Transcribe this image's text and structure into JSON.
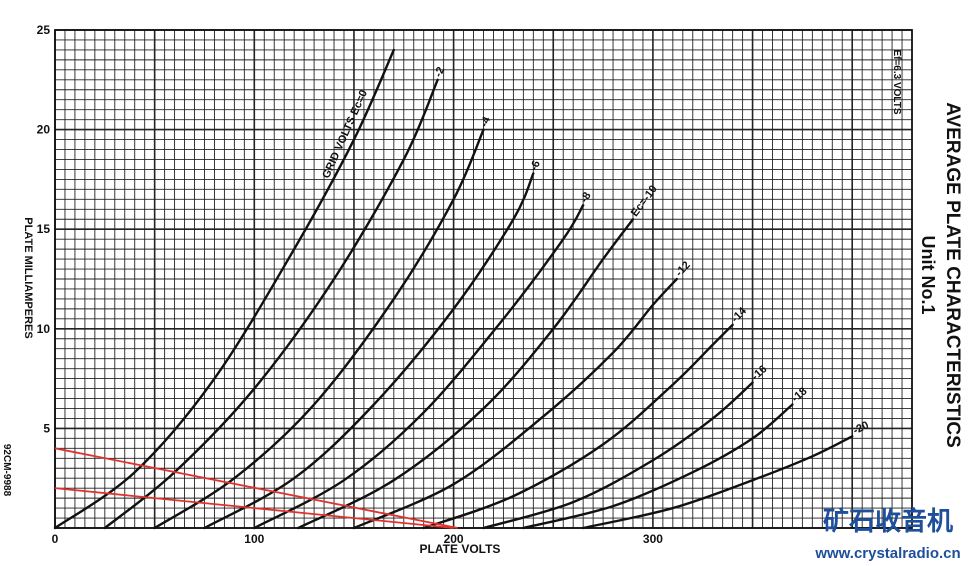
{
  "chart_data": {
    "type": "line",
    "title": "AVERAGE PLATE CHARACTERISTICS",
    "subtitle": "Unit No.1",
    "xlabel": "PLATE VOLTS",
    "ylabel": "PLATE MILLIAMPERES",
    "annotation": "Ef=6.3 VOLTS",
    "code": "92CM-9988",
    "xlim": [
      0,
      430
    ],
    "ylim": [
      0,
      25
    ],
    "x_ticks": [
      0,
      100,
      200,
      300
    ],
    "y_ticks": [
      5,
      10,
      15,
      20,
      25
    ],
    "grid": true,
    "series": [
      {
        "name": "GRID VOLTS Ec=0",
        "x": [
          0,
          40,
          80,
          120,
          150,
          170
        ],
        "y": [
          0,
          2.8,
          7.5,
          14,
          19.5,
          24
        ],
        "label_text": "GRID VOLTS Ec=0"
      },
      {
        "name": "-2",
        "x": [
          25,
          60,
          100,
          140,
          175,
          192
        ],
        "y": [
          0,
          2.8,
          7,
          12.5,
          18.5,
          22.5
        ],
        "label_text": "-2"
      },
      {
        "name": "-4",
        "x": [
          50,
          90,
          130,
          170,
          200,
          215
        ],
        "y": [
          0,
          2.5,
          6.2,
          11.5,
          16.5,
          20
        ],
        "label_text": "-4"
      },
      {
        "name": "-6",
        "x": [
          75,
          120,
          160,
          200,
          230,
          240
        ],
        "y": [
          0,
          2.5,
          6.2,
          11,
          15.5,
          17.8
        ],
        "label_text": "-6"
      },
      {
        "name": "-8",
        "x": [
          100,
          145,
          185,
          225,
          255,
          265
        ],
        "y": [
          0,
          2.4,
          5.8,
          10.5,
          14.5,
          16.2
        ],
        "label_text": "-8"
      },
      {
        "name": "Ec=-10",
        "x": [
          122,
          170,
          215,
          250,
          275,
          290
        ],
        "y": [
          0,
          2.4,
          6,
          10,
          13.5,
          15.5
        ],
        "label_text": "Ec=-10"
      },
      {
        "name": "-12",
        "x": [
          150,
          200,
          245,
          280,
          300,
          312
        ],
        "y": [
          0,
          2.2,
          5.6,
          8.8,
          11.2,
          12.5
        ],
        "label_text": "-12"
      },
      {
        "name": "-14",
        "x": [
          185,
          230,
          275,
          310,
          330,
          340
        ],
        "y": [
          0,
          1.6,
          4.2,
          7.2,
          9.2,
          10.2
        ],
        "label_text": "-14"
      },
      {
        "name": "-16",
        "x": [
          215,
          260,
          300,
          330,
          350
        ],
        "y": [
          0,
          1.3,
          3.4,
          5.5,
          7.3
        ],
        "label_text": "-16"
      },
      {
        "name": "-18",
        "x": [
          235,
          280,
          320,
          350,
          370
        ],
        "y": [
          0,
          1.1,
          2.8,
          4.5,
          6.2
        ],
        "label_text": "-18"
      },
      {
        "name": "-20",
        "x": [
          265,
          310,
          350,
          380,
          400
        ],
        "y": [
          0,
          1,
          2.4,
          3.6,
          4.6
        ],
        "label_text": "-20"
      }
    ],
    "load_lines": [
      {
        "x": [
          0,
          202
        ],
        "y": [
          4,
          0
        ]
      },
      {
        "x": [
          0,
          200
        ],
        "y": [
          2,
          0
        ]
      }
    ],
    "colors": {
      "grid": "#222222",
      "curve": "#111111",
      "load_line": "#e0332e",
      "watermark": "#1d4f9c"
    }
  },
  "watermark": {
    "chinese": "矿石收音机",
    "url": "www.crystalradio.cn"
  }
}
